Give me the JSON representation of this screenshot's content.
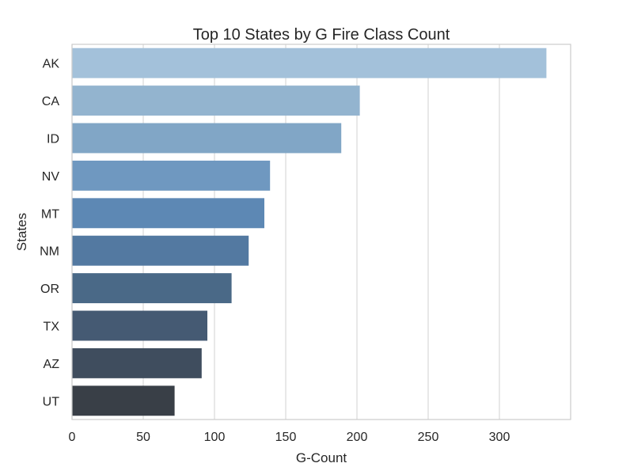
{
  "chart_data": {
    "type": "bar",
    "orientation": "horizontal",
    "title": "Top 10 States by G Fire Class Count",
    "xlabel": "G-Count",
    "ylabel": "States",
    "categories": [
      "AK",
      "CA",
      "ID",
      "NV",
      "MT",
      "NM",
      "OR",
      "TX",
      "AZ",
      "UT"
    ],
    "values": [
      333,
      202,
      189,
      139,
      135,
      124,
      112,
      95,
      91,
      72
    ],
    "xlim": [
      0,
      350
    ],
    "xticks": [
      0,
      50,
      100,
      150,
      200,
      250,
      300
    ],
    "grid": true,
    "colors": [
      "#a3c1da",
      "#93b4cf",
      "#81a6c6",
      "#6f98c0",
      "#5d88b4",
      "#5379a1",
      "#4a6987",
      "#455a73",
      "#3f4d5e",
      "#393f47"
    ]
  }
}
